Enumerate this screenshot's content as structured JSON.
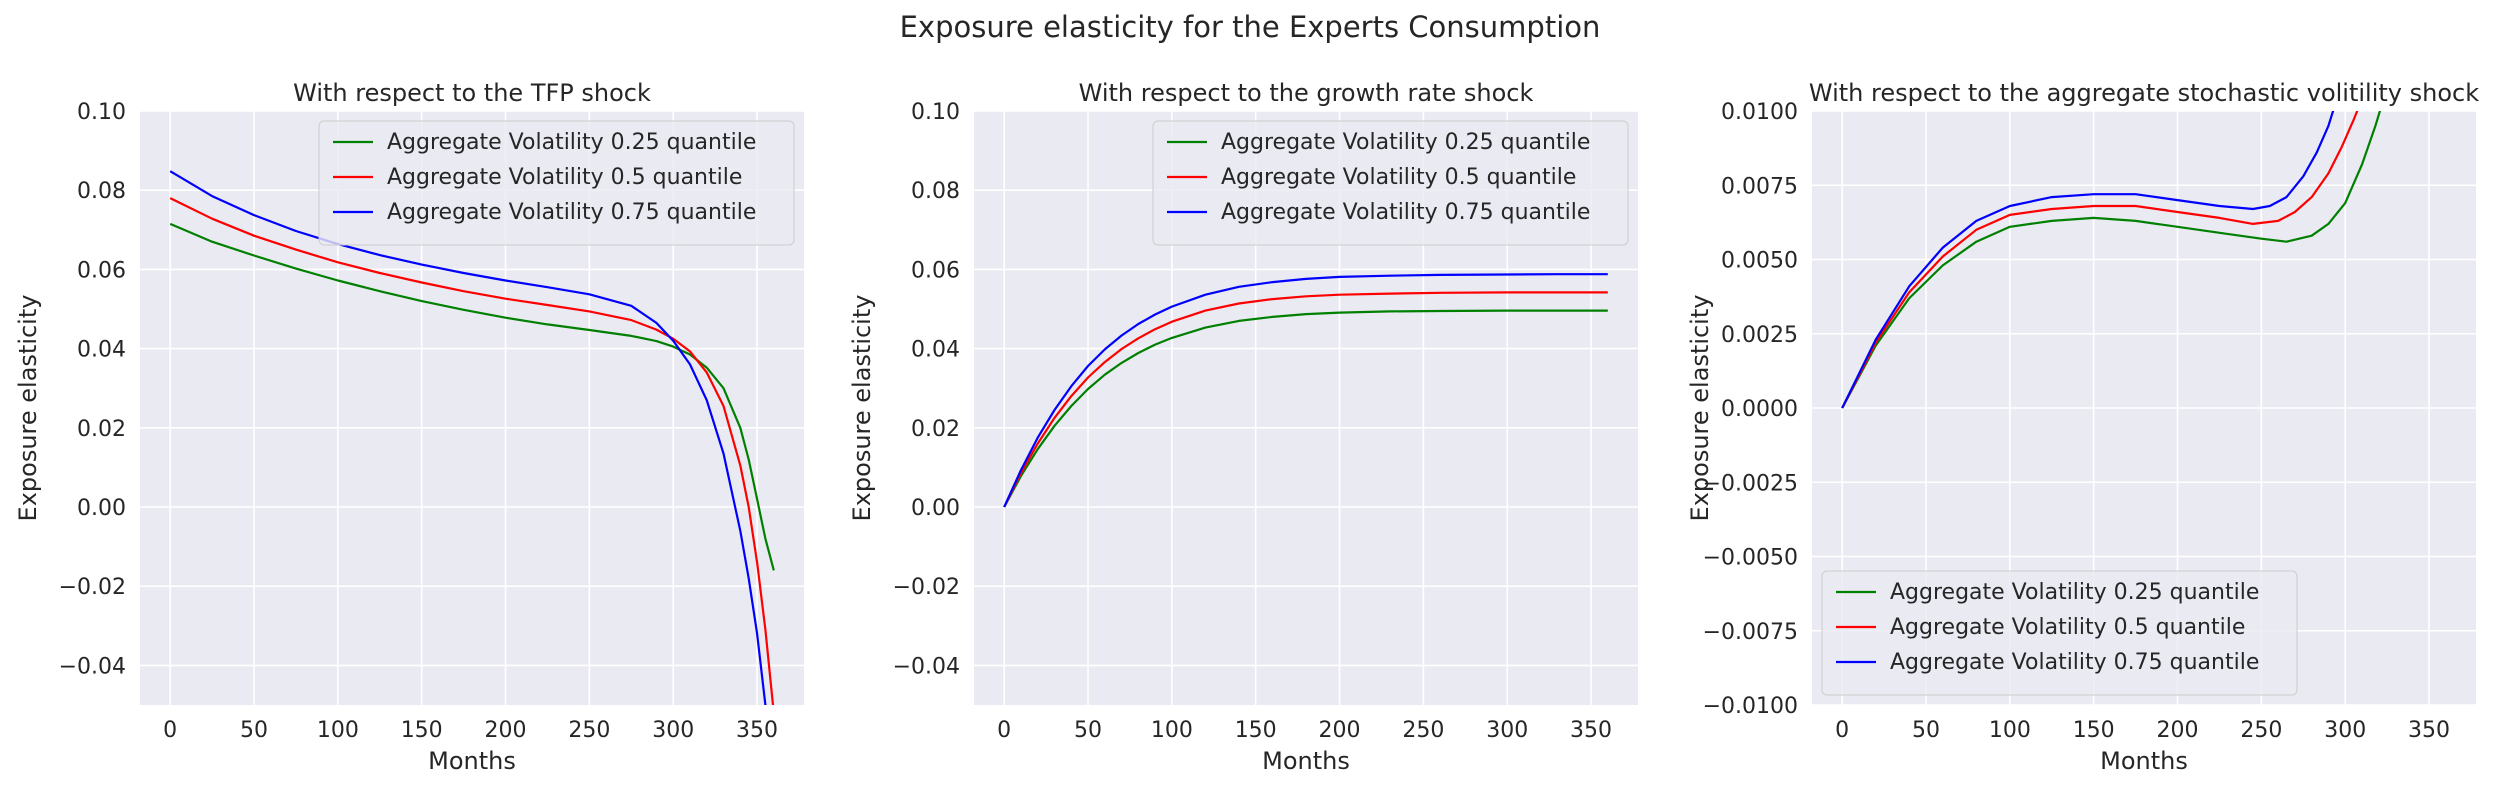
{
  "figure_title": "Exposure elasticity for the Experts Consumption",
  "chart_data": [
    {
      "type": "line",
      "title": "With respect to the TFP shock",
      "xlabel": "Months",
      "ylabel": "Exposure elasticity",
      "xlim": [
        -18,
        378
      ],
      "ylim": [
        -0.05,
        0.1
      ],
      "xticks": [
        0,
        50,
        100,
        150,
        200,
        250,
        300,
        350
      ],
      "xtick_labels": [
        "0",
        "50",
        "100",
        "150",
        "200",
        "250",
        "300",
        "350"
      ],
      "yticks": [
        -0.04,
        -0.02,
        0.0,
        0.02,
        0.04,
        0.06,
        0.08,
        0.1
      ],
      "ytick_labels": [
        "−0.04",
        "−0.02",
        "0.00",
        "0.02",
        "0.04",
        "0.06",
        "0.08",
        "0.10"
      ],
      "grid": true,
      "legend_position": "top-right",
      "x": [
        0,
        25,
        50,
        75,
        100,
        125,
        150,
        175,
        200,
        225,
        250,
        275,
        290,
        300,
        310,
        320,
        330,
        340,
        345,
        350,
        355,
        360
      ],
      "series": [
        {
          "name": "Aggregate Volatility 0.25 quantile",
          "color": "#008000",
          "values": [
            0.0715,
            0.067,
            0.0635,
            0.0602,
            0.0572,
            0.0545,
            0.052,
            0.0498,
            0.0478,
            0.0461,
            0.0447,
            0.0432,
            0.0419,
            0.0405,
            0.0385,
            0.0352,
            0.03,
            0.02,
            0.012,
            0.002,
            -0.008,
            -0.016
          ]
        },
        {
          "name": "Aggregate Volatility 0.5 quantile",
          "color": "#ff0000",
          "values": [
            0.078,
            0.0728,
            0.0685,
            0.065,
            0.0618,
            0.0591,
            0.0567,
            0.0545,
            0.0526,
            0.051,
            0.0494,
            0.0472,
            0.0448,
            0.0425,
            0.0393,
            0.034,
            0.0255,
            0.0105,
            0.0,
            -0.014,
            -0.031,
            -0.052
          ]
        },
        {
          "name": "Aggregate Volatility 0.75 quantile",
          "color": "#0000ff",
          "values": [
            0.0848,
            0.0785,
            0.0737,
            0.0697,
            0.0664,
            0.0636,
            0.0612,
            0.0591,
            0.0572,
            0.0555,
            0.0537,
            0.0508,
            0.0465,
            0.042,
            0.036,
            0.027,
            0.0135,
            -0.006,
            -0.018,
            -0.032,
            -0.05,
            -0.07
          ]
        }
      ]
    },
    {
      "type": "line",
      "title": "With respect to the growth rate shock",
      "xlabel": "Months",
      "ylabel": "Exposure elasticity",
      "xlim": [
        -18,
        378
      ],
      "ylim": [
        -0.05,
        0.1
      ],
      "xticks": [
        0,
        50,
        100,
        150,
        200,
        250,
        300,
        350
      ],
      "xtick_labels": [
        "0",
        "50",
        "100",
        "150",
        "200",
        "250",
        "300",
        "350"
      ],
      "yticks": [
        -0.04,
        -0.02,
        0.0,
        0.02,
        0.04,
        0.06,
        0.08,
        0.1
      ],
      "ytick_labels": [
        "−0.04",
        "−0.02",
        "0.00",
        "0.02",
        "0.04",
        "0.06",
        "0.08",
        "0.10"
      ],
      "grid": true,
      "legend_position": "top-right",
      "x": [
        0,
        10,
        20,
        30,
        40,
        50,
        60,
        70,
        80,
        90,
        100,
        120,
        140,
        160,
        180,
        200,
        230,
        260,
        300,
        330,
        360
      ],
      "series": [
        {
          "name": "Aggregate Volatility 0.25 quantile",
          "color": "#008000",
          "values": [
            0.0,
            0.0078,
            0.0146,
            0.0205,
            0.0255,
            0.0298,
            0.0334,
            0.0364,
            0.0389,
            0.041,
            0.0427,
            0.0453,
            0.047,
            0.048,
            0.0487,
            0.0491,
            0.0494,
            0.0495,
            0.0496,
            0.0496,
            0.0496
          ]
        },
        {
          "name": "Aggregate Volatility 0.5 quantile",
          "color": "#ff0000",
          "values": [
            0.0,
            0.0085,
            0.016,
            0.0225,
            0.028,
            0.0327,
            0.0366,
            0.0399,
            0.0426,
            0.0449,
            0.0468,
            0.0496,
            0.0514,
            0.0525,
            0.0532,
            0.0536,
            0.0539,
            0.0541,
            0.0542,
            0.0542,
            0.0542
          ]
        },
        {
          "name": "Aggregate Volatility 0.75 quantile",
          "color": "#0000ff",
          "values": [
            0.0,
            0.0093,
            0.0175,
            0.0245,
            0.0305,
            0.0356,
            0.0398,
            0.0433,
            0.0462,
            0.0486,
            0.0506,
            0.0536,
            0.0556,
            0.0568,
            0.0576,
            0.0581,
            0.0584,
            0.0586,
            0.0587,
            0.0588,
            0.0588
          ]
        }
      ]
    },
    {
      "type": "line",
      "title": "With respect to the aggregate stochastic volitility shock",
      "xlabel": "Months",
      "ylabel": "Exposure elasticity",
      "xlim": [
        -18,
        378
      ],
      "ylim": [
        -0.01,
        0.01
      ],
      "xticks": [
        0,
        50,
        100,
        150,
        200,
        250,
        300,
        350
      ],
      "xtick_labels": [
        "0",
        "50",
        "100",
        "150",
        "200",
        "250",
        "300",
        "350"
      ],
      "yticks": [
        -0.01,
        -0.0075,
        -0.005,
        -0.0025,
        0.0,
        0.0025,
        0.005,
        0.0075,
        0.01
      ],
      "ytick_labels": [
        "−0.0100",
        "−0.0075",
        "−0.0050",
        "−0.0025",
        "0.0000",
        "0.0025",
        "0.0050",
        "0.0075",
        "0.0100"
      ],
      "grid": true,
      "legend_position": "bottom-left",
      "series": [
        {
          "name": "Aggregate Volatility 0.25 quantile",
          "color": "#008000",
          "x": [
            0,
            20,
            40,
            60,
            80,
            100,
            125,
            150,
            175,
            200,
            225,
            250,
            265,
            280,
            290,
            300,
            310,
            318,
            325
          ],
          "values": [
            0.0,
            0.0021,
            0.0037,
            0.0048,
            0.0056,
            0.0061,
            0.0063,
            0.0064,
            0.0063,
            0.0061,
            0.0059,
            0.0057,
            0.0056,
            0.0058,
            0.0062,
            0.0069,
            0.0082,
            0.0095,
            0.0108
          ]
        },
        {
          "name": "Aggregate Volatility 0.5 quantile",
          "color": "#ff0000",
          "x": [
            0,
            20,
            40,
            60,
            80,
            100,
            125,
            150,
            175,
            200,
            225,
            245,
            260,
            270,
            280,
            290,
            298,
            305,
            310
          ],
          "values": [
            0.0,
            0.0022,
            0.0039,
            0.0051,
            0.006,
            0.0065,
            0.0067,
            0.0068,
            0.0068,
            0.0066,
            0.0064,
            0.0062,
            0.0063,
            0.0066,
            0.0071,
            0.0079,
            0.0088,
            0.0097,
            0.0104
          ]
        },
        {
          "name": "Aggregate Volatility 0.75 quantile",
          "color": "#0000ff",
          "x": [
            0,
            20,
            40,
            60,
            80,
            100,
            125,
            150,
            175,
            200,
            225,
            245,
            255,
            265,
            275,
            283,
            290,
            295
          ],
          "values": [
            0.0,
            0.0023,
            0.0041,
            0.0054,
            0.0063,
            0.0068,
            0.0071,
            0.0072,
            0.0072,
            0.007,
            0.0068,
            0.0067,
            0.0068,
            0.0071,
            0.0078,
            0.0086,
            0.0095,
            0.0104
          ]
        }
      ]
    }
  ]
}
